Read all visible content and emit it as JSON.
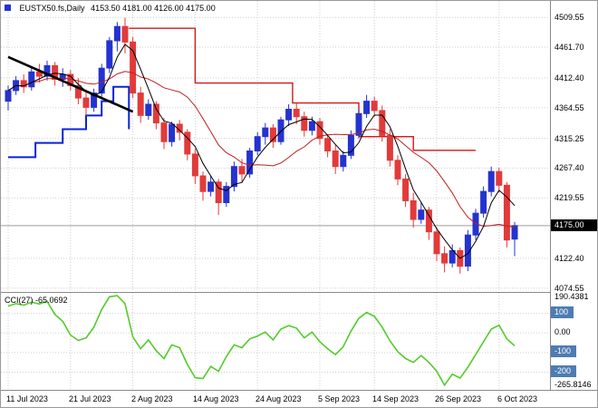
{
  "header": {
    "symbol": "EUSTX50.fs,Daily",
    "ohlc": "4153.50 4181.00 4126.00 4175.00"
  },
  "indicator": {
    "label": "CCI(27) -65.0692"
  },
  "colors": {
    "background": "#FFFFFF",
    "bull": "#2433CF",
    "bear": "#E23A3A",
    "ma_fast": "#000000",
    "ma_slow": "#C21F1F",
    "step_blue": "#0A23D8",
    "step_red": "#D01818",
    "trendline": "#000000",
    "cci_line": "#53CC29",
    "grid": "#CFCFCF",
    "price_line": "#9C9C9C",
    "tag_black_bg": "#000000",
    "tag_blue_bg": "#4E7CB2",
    "axis_text": "#000000"
  },
  "chart_data": {
    "type": "candlestick",
    "title": "EUSTX50.fs Daily with CCI(27) indicator",
    "main": {
      "ylim": [
        4070,
        4536
      ],
      "grid_prices": [
        "4509.55",
        "4461.70",
        "4412.40",
        "4364.55",
        "4315.25",
        "4267.40",
        "4219.55",
        "4122.40",
        "4074.55"
      ],
      "current_price": 4175.0,
      "current_price_label": "4175.00",
      "ma_fast_period": 4,
      "ma_slow_period": 12,
      "candles": [
        [
          4375,
          4400,
          4360,
          4392
        ],
        [
          4392,
          4415,
          4385,
          4408
        ],
        [
          4408,
          4418,
          4388,
          4398
        ],
        [
          4398,
          4430,
          4392,
          4422
        ],
        [
          4422,
          4435,
          4405,
          4415
        ],
        [
          4415,
          4440,
          4408,
          4432
        ],
        [
          4432,
          4438,
          4400,
          4410
        ],
        [
          4410,
          4428,
          4398,
          4418
        ],
        [
          4418,
          4425,
          4392,
          4400
        ],
        [
          4400,
          4412,
          4370,
          4380
        ],
        [
          4380,
          4392,
          4352,
          4365
        ],
        [
          4365,
          4395,
          4358,
          4388
        ],
        [
          4388,
          4435,
          4382,
          4428
        ],
        [
          4428,
          4478,
          4420,
          4472
        ],
        [
          4472,
          4502,
          4455,
          4495
        ],
        [
          4495,
          4509,
          4452,
          4470
        ],
        [
          4470,
          4478,
          4380,
          4388
        ],
        [
          4388,
          4398,
          4340,
          4352
        ],
        [
          4352,
          4378,
          4345,
          4370
        ],
        [
          4370,
          4375,
          4330,
          4340
        ],
        [
          4340,
          4348,
          4298,
          4310
        ],
        [
          4310,
          4342,
          4302,
          4338
        ],
        [
          4338,
          4345,
          4312,
          4325
        ],
        [
          4325,
          4330,
          4280,
          4290
        ],
        [
          4290,
          4298,
          4242,
          4255
        ],
        [
          4255,
          4262,
          4215,
          4230
        ],
        [
          4230,
          4255,
          4222,
          4245
        ],
        [
          4245,
          4250,
          4192,
          4212
        ],
        [
          4212,
          4245,
          4205,
          4238
        ],
        [
          4238,
          4278,
          4230,
          4270
        ],
        [
          4270,
          4282,
          4245,
          4258
        ],
        [
          4258,
          4300,
          4252,
          4295
        ],
        [
          4295,
          4325,
          4288,
          4318
        ],
        [
          4318,
          4340,
          4305,
          4332
        ],
        [
          4332,
          4338,
          4300,
          4310
        ],
        [
          4310,
          4350,
          4305,
          4345
        ],
        [
          4345,
          4370,
          4335,
          4362
        ],
        [
          4362,
          4372,
          4338,
          4350
        ],
        [
          4350,
          4358,
          4318,
          4328
        ],
        [
          4328,
          4350,
          4320,
          4342
        ],
        [
          4342,
          4348,
          4305,
          4315
        ],
        [
          4315,
          4322,
          4285,
          4295
        ],
        [
          4295,
          4305,
          4258,
          4270
        ],
        [
          4270,
          4295,
          4262,
          4288
        ],
        [
          4288,
          4328,
          4282,
          4320
        ],
        [
          4320,
          4362,
          4315,
          4355
        ],
        [
          4355,
          4385,
          4348,
          4375
        ],
        [
          4375,
          4382,
          4350,
          4360
        ],
        [
          4360,
          4368,
          4310,
          4320
        ],
        [
          4320,
          4330,
          4270,
          4280
        ],
        [
          4280,
          4288,
          4240,
          4250
        ],
        [
          4250,
          4258,
          4205,
          4215
        ],
        [
          4215,
          4228,
          4172,
          4185
        ],
        [
          4185,
          4212,
          4178,
          4200
        ],
        [
          4200,
          4205,
          4152,
          4165
        ],
        [
          4165,
          4172,
          4118,
          4130
        ],
        [
          4130,
          4142,
          4100,
          4115
        ],
        [
          4115,
          4145,
          4108,
          4135
        ],
        [
          4135,
          4140,
          4098,
          4110
        ],
        [
          4110,
          4168,
          4102,
          4160
        ],
        [
          4160,
          4202,
          4152,
          4195
        ],
        [
          4195,
          4238,
          4188,
          4230
        ],
        [
          4230,
          4270,
          4222,
          4262
        ],
        [
          4262,
          4268,
          4228,
          4240
        ],
        [
          4240,
          4245,
          4140,
          4152
        ],
        [
          4153.5,
          4181,
          4126,
          4175
        ]
      ],
      "blue_step": [
        [
          0,
          4285
        ],
        [
          3.5,
          4285
        ],
        [
          3.5,
          4308
        ],
        [
          7,
          4308
        ],
        [
          7,
          4330
        ],
        [
          10,
          4330
        ],
        [
          10,
          4352
        ],
        [
          12,
          4352
        ],
        [
          12,
          4375
        ],
        [
          13.5,
          4375
        ],
        [
          13.5,
          4398
        ],
        [
          15.5,
          4398
        ],
        [
          15.5,
          4330
        ]
      ],
      "red_step": [
        [
          15.5,
          4492
        ],
        [
          24,
          4492
        ],
        [
          24,
          4404
        ],
        [
          36.5,
          4404
        ],
        [
          36.5,
          4372
        ],
        [
          45,
          4372
        ],
        [
          45,
          4318
        ],
        [
          52,
          4318
        ],
        [
          52,
          4296
        ],
        [
          60,
          4296
        ]
      ],
      "trendline": [
        [
          0,
          4446
        ],
        [
          16,
          4358
        ]
      ]
    },
    "cci": {
      "ylim": [
        -290,
        205
      ],
      "levels": [
        100,
        0,
        -100,
        -200
      ],
      "level_labels": [
        {
          "text": "190.4381",
          "value": 190.4381,
          "style": "plain"
        },
        {
          "text": "100",
          "value": 100,
          "style": "tag"
        },
        {
          "text": "0.00",
          "value": 0,
          "style": "plain"
        },
        {
          "text": "-100",
          "value": -100,
          "style": "tag"
        },
        {
          "text": "-200",
          "value": -200,
          "style": "tag"
        },
        {
          "text": "-265.8146",
          "value": -265.8146,
          "style": "plain"
        }
      ],
      "values": [
        138,
        150,
        142,
        158,
        148,
        162,
        95,
        60,
        -10,
        -38,
        -25,
        30,
        120,
        185,
        190.44,
        150,
        -20,
        -80,
        -35,
        -90,
        -130,
        -60,
        -75,
        -160,
        -228,
        -232,
        -170,
        -195,
        -120,
        -60,
        -75,
        -30,
        -15,
        5,
        -35,
        20,
        38,
        25,
        -25,
        5,
        -45,
        -80,
        -110,
        -70,
        10,
        75,
        105,
        85,
        30,
        -40,
        -95,
        -130,
        -150,
        -115,
        -150,
        -195,
        -265.81,
        -210,
        -230,
        -175,
        -110,
        -45,
        20,
        40,
        -30,
        -65.07
      ]
    },
    "x": {
      "bar_count": 66,
      "ticks": [
        {
          "bar": 0,
          "label": "11 Jul 2023"
        },
        {
          "bar": 8,
          "label": "21 Jul 2023"
        },
        {
          "bar": 16,
          "label": "2 Aug 2023"
        },
        {
          "bar": 24,
          "label": "14 Aug 2023"
        },
        {
          "bar": 32,
          "label": "24 Aug 2023"
        },
        {
          "bar": 40,
          "label": "5 Sep 2023"
        },
        {
          "bar": 47,
          "label": "14 Sep 2023"
        },
        {
          "bar": 55,
          "label": "26 Sep 2023"
        },
        {
          "bar": 63,
          "label": "6 Oct 2023"
        }
      ]
    }
  }
}
